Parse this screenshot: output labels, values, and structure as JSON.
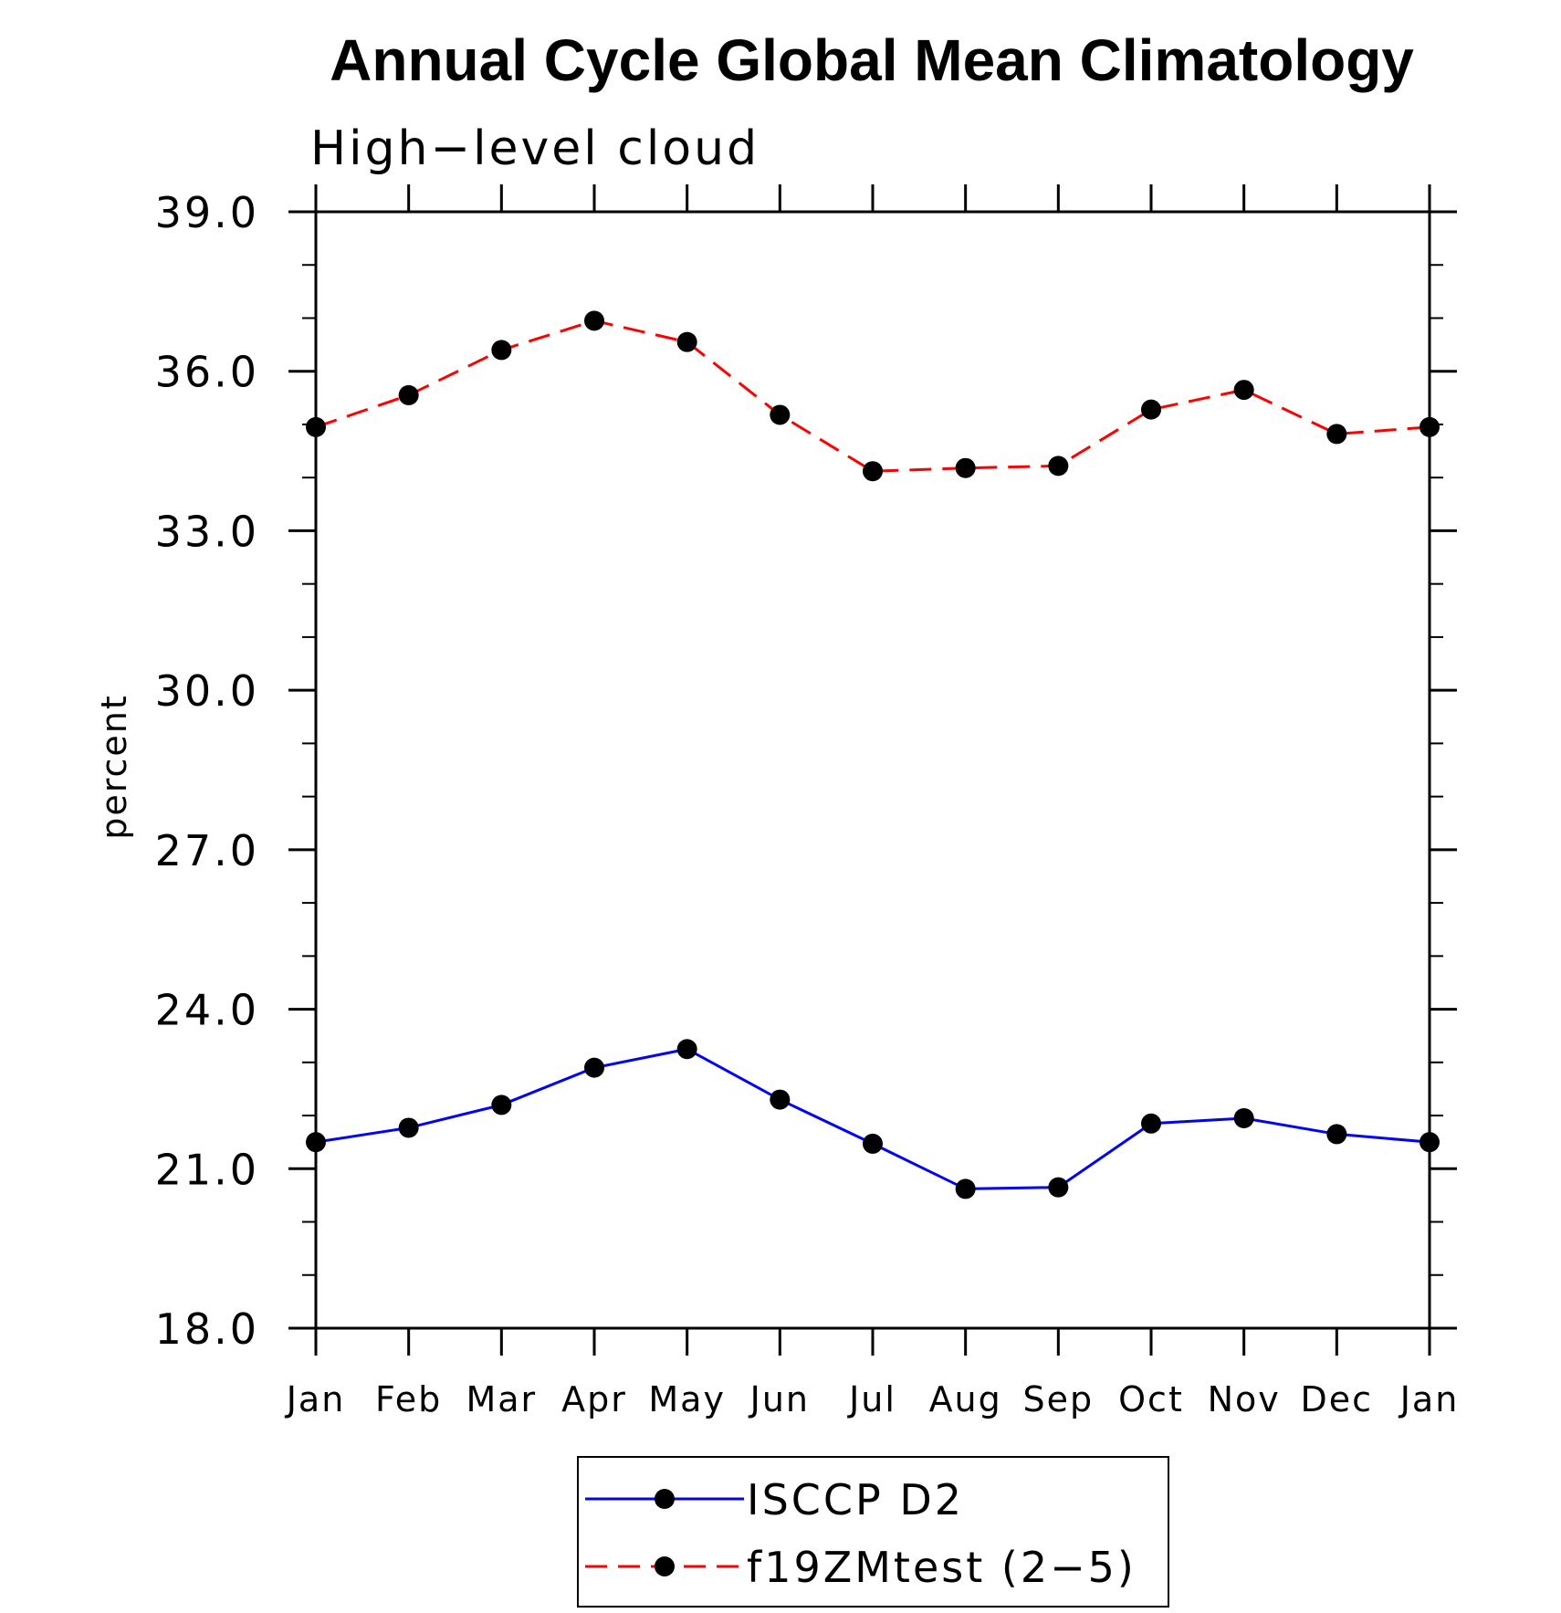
{
  "chart_data": {
    "type": "line",
    "title": "Annual Cycle Global Mean Climatology",
    "subtitle": "High−level cloud",
    "xlabel": "",
    "ylabel": "percent",
    "categories": [
      "Jan",
      "Feb",
      "Mar",
      "Apr",
      "May",
      "Jun",
      "Jul",
      "Aug",
      "Sep",
      "Oct",
      "Nov",
      "Dec",
      "Jan"
    ],
    "ylim": [
      18.0,
      39.0
    ],
    "yticks": [
      "18.0",
      "21.0",
      "24.0",
      "27.0",
      "30.0",
      "33.0",
      "36.0",
      "39.0"
    ],
    "grid": false,
    "legend_position": "bottom-center",
    "series": [
      {
        "name": "ISCCP D2",
        "color": "#0000ff",
        "line_style": "solid",
        "marker": "filled-circle",
        "values": [
          21.5,
          21.77,
          22.2,
          22.9,
          23.25,
          22.3,
          21.47,
          20.62,
          20.65,
          21.85,
          21.95,
          21.65,
          21.5
        ]
      },
      {
        "name": "f19ZMtest (2−5)",
        "color": "#ff0000",
        "line_style": "dashed",
        "marker": "filled-circle",
        "values": [
          34.95,
          35.55,
          36.4,
          36.95,
          36.55,
          35.18,
          34.12,
          34.18,
          34.22,
          35.28,
          35.65,
          34.82,
          34.95
        ]
      }
    ]
  }
}
